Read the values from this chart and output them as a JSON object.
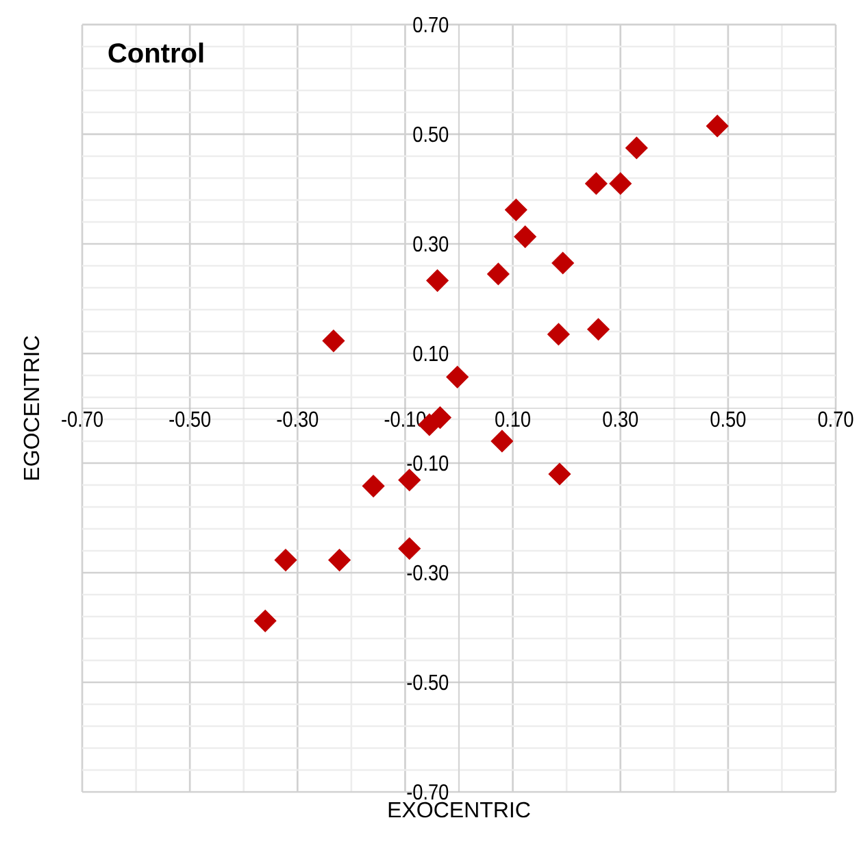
{
  "chart_data": {
    "type": "scatter",
    "title": "Control",
    "xlabel": "EXOCENTRIC",
    "ylabel": "EGOCENTRIC",
    "xlim": [
      -0.7,
      0.7
    ],
    "ylim": [
      -0.7,
      0.7
    ],
    "xticks": [
      {
        "value": -0.7,
        "label": "-0.70"
      },
      {
        "value": -0.5,
        "label": "-0.50"
      },
      {
        "value": -0.3,
        "label": "-0.30"
      },
      {
        "value": -0.1,
        "label": "-0.10"
      },
      {
        "value": 0.1,
        "label": "0.10"
      },
      {
        "value": 0.3,
        "label": "0.30"
      },
      {
        "value": 0.5,
        "label": "0.50"
      },
      {
        "value": 0.7,
        "label": "0.70"
      }
    ],
    "yticks": [
      {
        "value": -0.7,
        "label": "-0.70"
      },
      {
        "value": -0.5,
        "label": "-0.50"
      },
      {
        "value": -0.3,
        "label": "-0.30"
      },
      {
        "value": -0.1,
        "label": "-0.10"
      },
      {
        "value": 0.1,
        "label": "0.10"
      },
      {
        "value": 0.3,
        "label": "0.30"
      },
      {
        "value": 0.5,
        "label": "0.50"
      },
      {
        "value": 0.7,
        "label": "0.70"
      }
    ],
    "grid": true,
    "marker": "diamond",
    "color": "#c00000",
    "x": [
      0.48,
      0.33,
      0.255,
      0.3,
      0.106,
      0.123,
      0.193,
      0.073,
      -0.04,
      0.185,
      0.259,
      -0.233,
      -0.003,
      -0.035,
      -0.055,
      0.08,
      0.187,
      -0.159,
      -0.092,
      -0.092,
      -0.322,
      -0.222,
      -0.36
    ],
    "values": [
      0.515,
      0.475,
      0.41,
      0.41,
      0.362,
      0.313,
      0.265,
      0.245,
      0.233,
      0.135,
      0.144,
      0.123,
      0.057,
      -0.017,
      -0.03,
      -0.06,
      -0.12,
      -0.142,
      -0.131,
      -0.256,
      -0.277,
      -0.277,
      -0.388
    ]
  }
}
